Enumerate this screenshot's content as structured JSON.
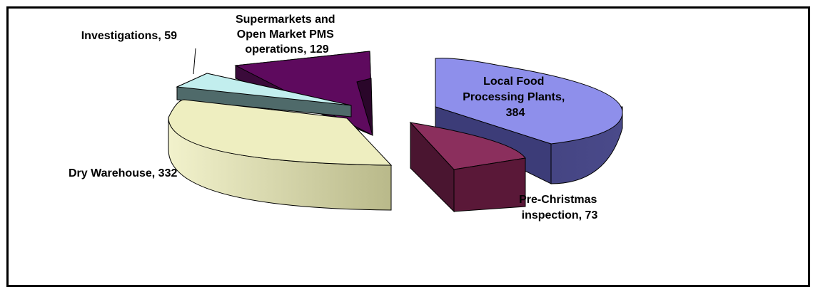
{
  "chart_data": {
    "type": "pie",
    "style": "3d-exploded",
    "title": "",
    "slices": [
      {
        "label": "Local Food Processing Plants",
        "value": 384,
        "color": "#8E8FEB",
        "text": [
          "Local Food",
          "Processing Plants,",
          "384"
        ]
      },
      {
        "label": "Pre-Christmas inspection",
        "value": 73,
        "color": "#8B2F5D",
        "text": [
          "Pre-Christmas",
          "inspection, 73"
        ]
      },
      {
        "label": "Dry Warehouse",
        "value": 332,
        "color": "#EEEEC0",
        "text": [
          "Dry Warehouse, 332"
        ]
      },
      {
        "label": "Investigations",
        "value": 59,
        "color": "#C2EEEE",
        "text": [
          "Investigations, 59"
        ]
      },
      {
        "label": "Supermarkets and Open Market PMS operations",
        "value": 129,
        "color": "#5E0A5E",
        "text": [
          "Supermarkets and",
          "Open Market PMS",
          "operations, 129"
        ]
      }
    ]
  }
}
